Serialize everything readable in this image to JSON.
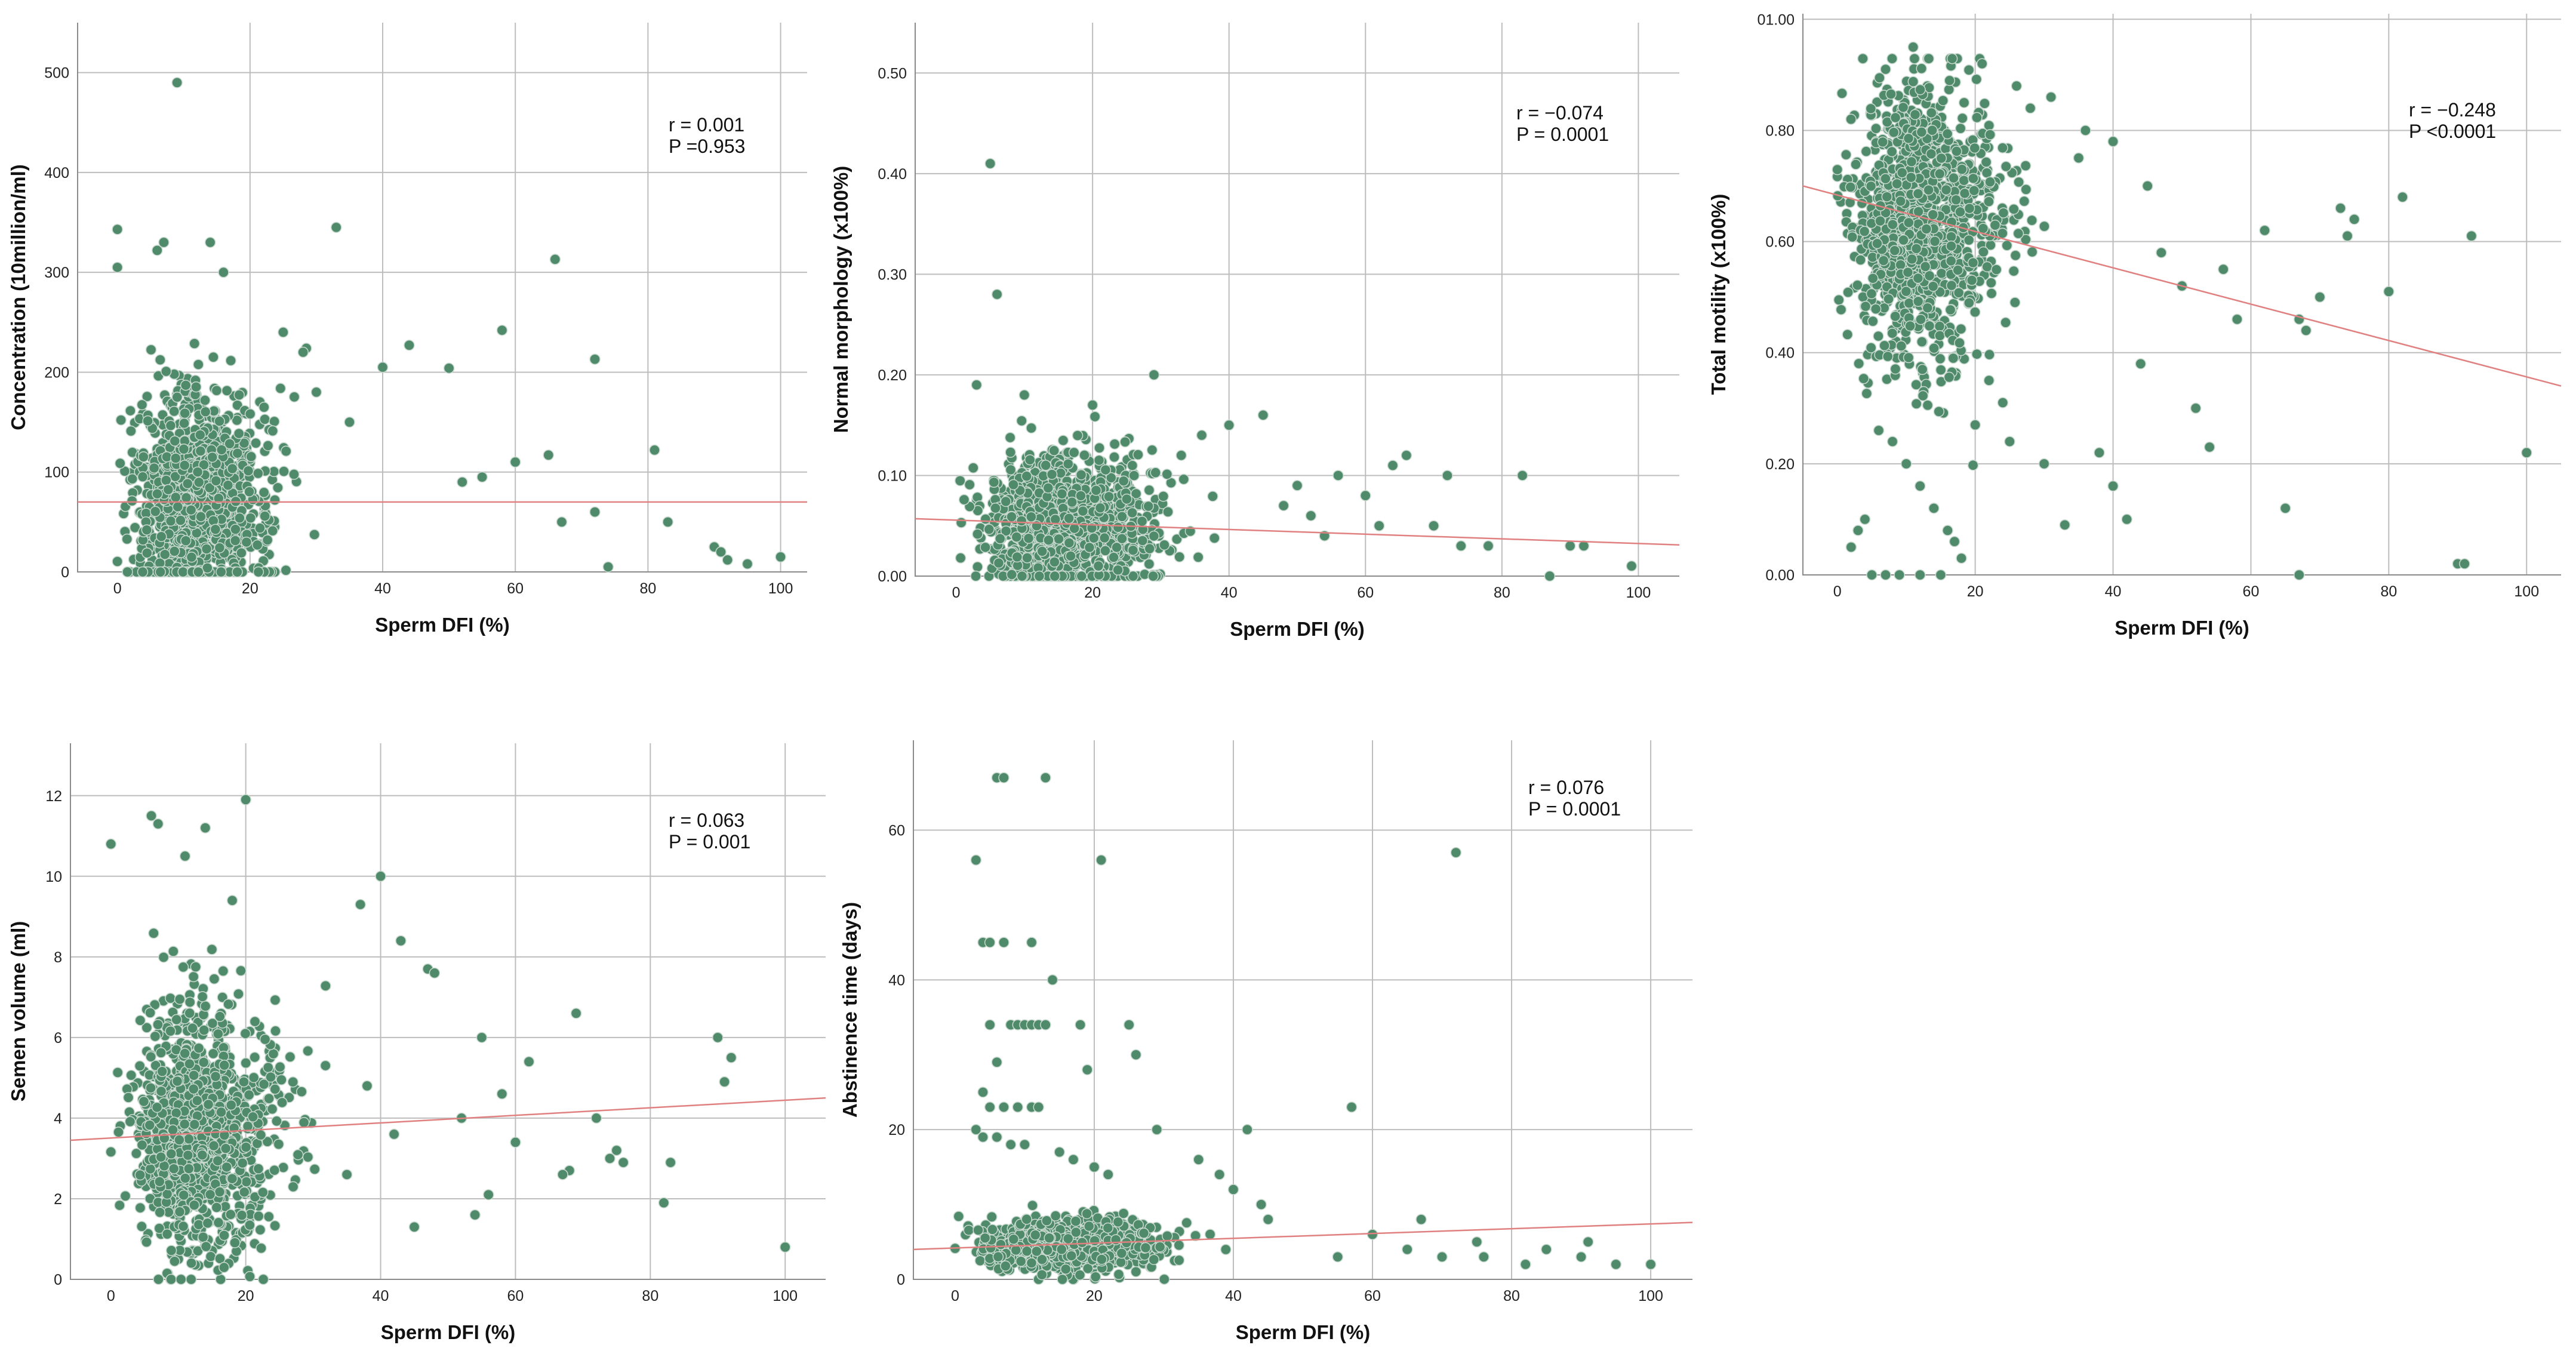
{
  "colors": {
    "point": "#4f8a6a",
    "fit_line": "#e08080",
    "grid": "#bdbdbd"
  },
  "chart_data": [
    {
      "type": "scatter",
      "id": "concentration",
      "xlabel": "Sperm DFI (%)",
      "ylabel": "Concentration (10million/ml)",
      "xlim": [
        -6,
        104
      ],
      "ylim": [
        0,
        550
      ],
      "x_ticks": [
        "0",
        "20",
        "40",
        "60",
        "80",
        "100"
      ],
      "x_tick_values": [
        0,
        20,
        40,
        60,
        80,
        100
      ],
      "y_ticks": [
        "0",
        "100",
        "200",
        "300",
        "400",
        "500"
      ],
      "y_tick_values": [
        0,
        100,
        200,
        300,
        400,
        500
      ],
      "annotation": [
        "r = 0.001",
        "P =0.953"
      ],
      "fit": {
        "x0": -6,
        "y0": 70,
        "x1": 104,
        "y1": 70
      },
      "cluster": {
        "x_mean": 9,
        "x_sd": 6.5,
        "y_mean": 75,
        "y_sd": 55,
        "n": 1200
      },
      "points": [
        [
          9,
          490
        ],
        [
          0,
          343
        ],
        [
          0,
          305
        ],
        [
          7,
          330
        ],
        [
          6,
          322
        ],
        [
          14,
          330
        ],
        [
          16,
          300
        ],
        [
          33,
          345
        ],
        [
          66,
          313
        ],
        [
          58,
          242
        ],
        [
          72,
          213
        ],
        [
          44,
          227
        ],
        [
          50,
          204
        ],
        [
          40,
          205
        ],
        [
          81,
          122
        ],
        [
          65,
          117
        ],
        [
          60,
          110
        ],
        [
          83,
          50
        ],
        [
          90,
          25
        ],
        [
          91,
          20
        ],
        [
          92,
          12
        ],
        [
          100,
          15
        ],
        [
          95,
          8
        ],
        [
          67,
          50
        ],
        [
          72,
          60
        ],
        [
          74,
          5
        ],
        [
          55,
          95
        ],
        [
          52,
          90
        ],
        [
          35,
          150
        ],
        [
          30,
          180
        ],
        [
          25,
          240
        ],
        [
          28,
          220
        ]
      ]
    },
    {
      "type": "scatter",
      "id": "morphology",
      "xlabel": "Sperm DFI (%)",
      "ylabel": "Normal morphology (x100%)",
      "xlim": [
        -6,
        106
      ],
      "ylim": [
        0,
        0.55
      ],
      "x_ticks": [
        "0",
        "20",
        "40",
        "60",
        "80",
        "100"
      ],
      "x_tick_values": [
        0,
        20,
        40,
        60,
        80,
        100
      ],
      "y_ticks": [
        "0.00",
        "0.10",
        "0.20",
        "0.30",
        "0.40",
        "0.50"
      ],
      "y_tick_values": [
        0,
        0.1,
        0.2,
        0.3,
        0.4,
        0.5
      ],
      "annotation": [
        "r = −0.074",
        "P = 0.0001"
      ],
      "fit": {
        "x0": -6,
        "y0": 0.057,
        "x1": 106,
        "y1": 0.031
      },
      "cluster": {
        "x_mean": 12,
        "x_sd": 8,
        "y_mean": 0.05,
        "y_sd": 0.035,
        "n": 1200
      },
      "points": [
        [
          5,
          0.41
        ],
        [
          6,
          0.28
        ],
        [
          29,
          0.2
        ],
        [
          45,
          0.16
        ],
        [
          40,
          0.15
        ],
        [
          33,
          0.12
        ],
        [
          66,
          0.12
        ],
        [
          64,
          0.11
        ],
        [
          72,
          0.1
        ],
        [
          83,
          0.1
        ],
        [
          56,
          0.1
        ],
        [
          60,
          0.08
        ],
        [
          70,
          0.05
        ],
        [
          78,
          0.03
        ],
        [
          90,
          0.03
        ],
        [
          92,
          0.03
        ],
        [
          99,
          0.01
        ],
        [
          87,
          0.0
        ],
        [
          54,
          0.04
        ],
        [
          52,
          0.06
        ],
        [
          48,
          0.07
        ],
        [
          36,
          0.14
        ],
        [
          20,
          0.17
        ],
        [
          10,
          0.18
        ],
        [
          3,
          0.19
        ],
        [
          50,
          0.09
        ],
        [
          74,
          0.03
        ],
        [
          62,
          0.05
        ]
      ]
    },
    {
      "type": "scatter",
      "id": "motility",
      "xlabel": "Sperm DFI (%)",
      "ylabel": "Total motility (x100%)",
      "xlim": [
        -5,
        105
      ],
      "ylim": [
        0,
        1.01
      ],
      "x_ticks": [
        "0",
        "20",
        "40",
        "60",
        "80",
        "100"
      ],
      "x_tick_values": [
        0,
        20,
        40,
        60,
        80,
        100
      ],
      "y_ticks": [
        "0.00",
        "0.20",
        "0.40",
        "0.60",
        "0.80",
        "01.00"
      ],
      "y_tick_values": [
        0,
        0.2,
        0.4,
        0.6,
        0.8,
        1.0
      ],
      "annotation": [
        "r = −0.248",
        "P <0.0001"
      ],
      "fit": {
        "x0": -5,
        "y0": 0.7,
        "x1": 105,
        "y1": 0.34
      },
      "cluster": {
        "x_mean": 9,
        "x_sd": 7,
        "y_mean": 0.64,
        "y_sd": 0.12,
        "n": 1250
      },
      "points": [
        [
          11,
          0.95
        ],
        [
          21,
          0.92
        ],
        [
          7,
          0.91
        ],
        [
          82,
          0.68
        ],
        [
          92,
          0.61
        ],
        [
          75,
          0.64
        ],
        [
          74,
          0.61
        ],
        [
          73,
          0.66
        ],
        [
          80,
          0.51
        ],
        [
          70,
          0.5
        ],
        [
          68,
          0.44
        ],
        [
          67,
          0.46
        ],
        [
          62,
          0.62
        ],
        [
          65,
          0.12
        ],
        [
          67,
          0.0
        ],
        [
          90,
          0.02
        ],
        [
          91,
          0.02
        ],
        [
          100,
          0.22
        ],
        [
          58,
          0.46
        ],
        [
          56,
          0.55
        ],
        [
          33,
          0.09
        ],
        [
          42,
          0.1
        ],
        [
          40,
          0.16
        ],
        [
          38,
          0.22
        ],
        [
          30,
          0.2
        ],
        [
          25,
          0.24
        ],
        [
          24,
          0.31
        ],
        [
          20,
          0.27
        ],
        [
          17,
          0.06
        ],
        [
          16,
          0.08
        ],
        [
          14,
          0.12
        ],
        [
          12,
          0.16
        ],
        [
          10,
          0.2
        ],
        [
          8,
          0.24
        ],
        [
          6,
          0.26
        ],
        [
          5,
          0.0
        ],
        [
          7,
          0.0
        ],
        [
          9,
          0.0
        ],
        [
          2,
          0.05
        ],
        [
          3,
          0.08
        ],
        [
          4,
          0.1
        ],
        [
          12,
          0.0
        ],
        [
          15,
          0.0
        ],
        [
          18,
          0.03
        ],
        [
          22,
          0.35
        ],
        [
          44,
          0.38
        ],
        [
          52,
          0.3
        ],
        [
          54,
          0.23
        ],
        [
          50,
          0.52
        ],
        [
          47,
          0.58
        ],
        [
          45,
          0.7
        ],
        [
          40,
          0.78
        ],
        [
          36,
          0.8
        ],
        [
          31,
          0.86
        ],
        [
          28,
          0.84
        ],
        [
          26,
          0.88
        ]
      ]
    },
    {
      "type": "scatter",
      "id": "volume",
      "xlabel": "Sperm DFI (%)",
      "ylabel": "Semen volume (ml)",
      "xlim": [
        -6,
        106
      ],
      "ylim": [
        0,
        13.3
      ],
      "x_ticks": [
        "0",
        "20",
        "40",
        "60",
        "80",
        "100"
      ],
      "x_tick_values": [
        0,
        20,
        40,
        60,
        80,
        100
      ],
      "y_ticks": [
        "0",
        "2",
        "4",
        "6",
        "8",
        "10",
        "12"
      ],
      "y_tick_values": [
        0,
        2,
        4,
        6,
        8,
        10,
        12
      ],
      "annotation": [
        "r = 0.063",
        "P = 0.001"
      ],
      "fit": {
        "x0": -6,
        "y0": 3.45,
        "x1": 106,
        "y1": 4.5
      },
      "cluster": {
        "x_mean": 10,
        "x_sd": 7,
        "y_mean": 3.6,
        "y_sd": 1.5,
        "n": 1250
      },
      "points": [
        [
          20,
          11.9
        ],
        [
          6,
          11.5
        ],
        [
          7,
          11.3
        ],
        [
          14,
          11.2
        ],
        [
          0,
          10.8
        ],
        [
          11,
          10.5
        ],
        [
          40,
          10.0
        ],
        [
          37,
          9.3
        ],
        [
          18,
          9.4
        ],
        [
          43,
          8.4
        ],
        [
          47,
          7.7
        ],
        [
          48,
          7.6
        ],
        [
          69,
          6.6
        ],
        [
          90,
          6.0
        ],
        [
          91,
          4.9
        ],
        [
          92,
          5.5
        ],
        [
          100,
          0.8
        ],
        [
          82,
          1.9
        ],
        [
          83,
          2.9
        ],
        [
          72,
          4.0
        ],
        [
          74,
          3.0
        ],
        [
          75,
          3.2
        ],
        [
          68,
          2.7
        ],
        [
          62,
          5.4
        ],
        [
          60,
          3.4
        ],
        [
          58,
          4.6
        ],
        [
          56,
          2.1
        ],
        [
          54,
          1.6
        ],
        [
          52,
          4.0
        ],
        [
          45,
          1.3
        ],
        [
          42,
          3.6
        ],
        [
          38,
          4.8
        ],
        [
          35,
          2.6
        ],
        [
          55,
          6.0
        ],
        [
          67,
          2.6
        ],
        [
          76,
          2.9
        ]
      ]
    },
    {
      "type": "scatter",
      "id": "abstinence",
      "xlabel": "Sperm DFI (%)",
      "ylabel": "Abstinence time (days)",
      "xlim": [
        -6,
        106
      ],
      "ylim": [
        0,
        72
      ],
      "x_ticks": [
        "0",
        "20",
        "40",
        "60",
        "80",
        "100"
      ],
      "x_tick_values": [
        0,
        20,
        40,
        60,
        80,
        100
      ],
      "y_ticks": [
        "0",
        "20",
        "40",
        "60"
      ],
      "y_tick_values": [
        0,
        20,
        40,
        60
      ],
      "annotation": [
        "r = 0.076",
        "P = 0.0001"
      ],
      "fit": {
        "x0": -6,
        "y0": 4.0,
        "x1": 106,
        "y1": 7.6
      },
      "cluster": {
        "x_mean": 12,
        "x_sd": 8,
        "y_mean": 4.5,
        "y_sd": 1.6,
        "n": 1100
      },
      "points": [
        [
          6,
          67
        ],
        [
          7,
          67
        ],
        [
          13,
          67
        ],
        [
          72,
          57
        ],
        [
          3,
          56
        ],
        [
          21,
          56
        ],
        [
          4,
          45
        ],
        [
          5,
          45
        ],
        [
          7,
          45
        ],
        [
          11,
          45
        ],
        [
          14,
          40
        ],
        [
          5,
          34
        ],
        [
          8,
          34
        ],
        [
          9,
          34
        ],
        [
          10,
          34
        ],
        [
          11,
          34
        ],
        [
          12,
          34
        ],
        [
          13,
          34
        ],
        [
          18,
          34
        ],
        [
          25,
          34
        ],
        [
          26,
          30
        ],
        [
          6,
          29
        ],
        [
          19,
          28
        ],
        [
          4,
          25
        ],
        [
          5,
          23
        ],
        [
          7,
          23
        ],
        [
          9,
          23
        ],
        [
          11,
          23
        ],
        [
          12,
          23
        ],
        [
          57,
          23
        ],
        [
          3,
          20
        ],
        [
          4,
          19
        ],
        [
          6,
          19
        ],
        [
          8,
          18
        ],
        [
          10,
          18
        ],
        [
          15,
          17
        ],
        [
          17,
          16
        ],
        [
          20,
          15
        ],
        [
          22,
          14
        ],
        [
          29,
          20
        ],
        [
          42,
          20
        ],
        [
          38,
          14
        ],
        [
          40,
          12
        ],
        [
          35,
          16
        ],
        [
          44,
          10
        ],
        [
          45,
          8
        ],
        [
          67,
          8
        ],
        [
          75,
          5
        ],
        [
          82,
          2
        ],
        [
          90,
          3
        ],
        [
          91,
          5
        ],
        [
          100,
          2
        ],
        [
          60,
          6
        ],
        [
          55,
          3
        ],
        [
          65,
          4
        ],
        [
          70,
          3
        ],
        [
          76,
          3
        ],
        [
          85,
          4
        ],
        [
          95,
          2
        ]
      ]
    }
  ]
}
